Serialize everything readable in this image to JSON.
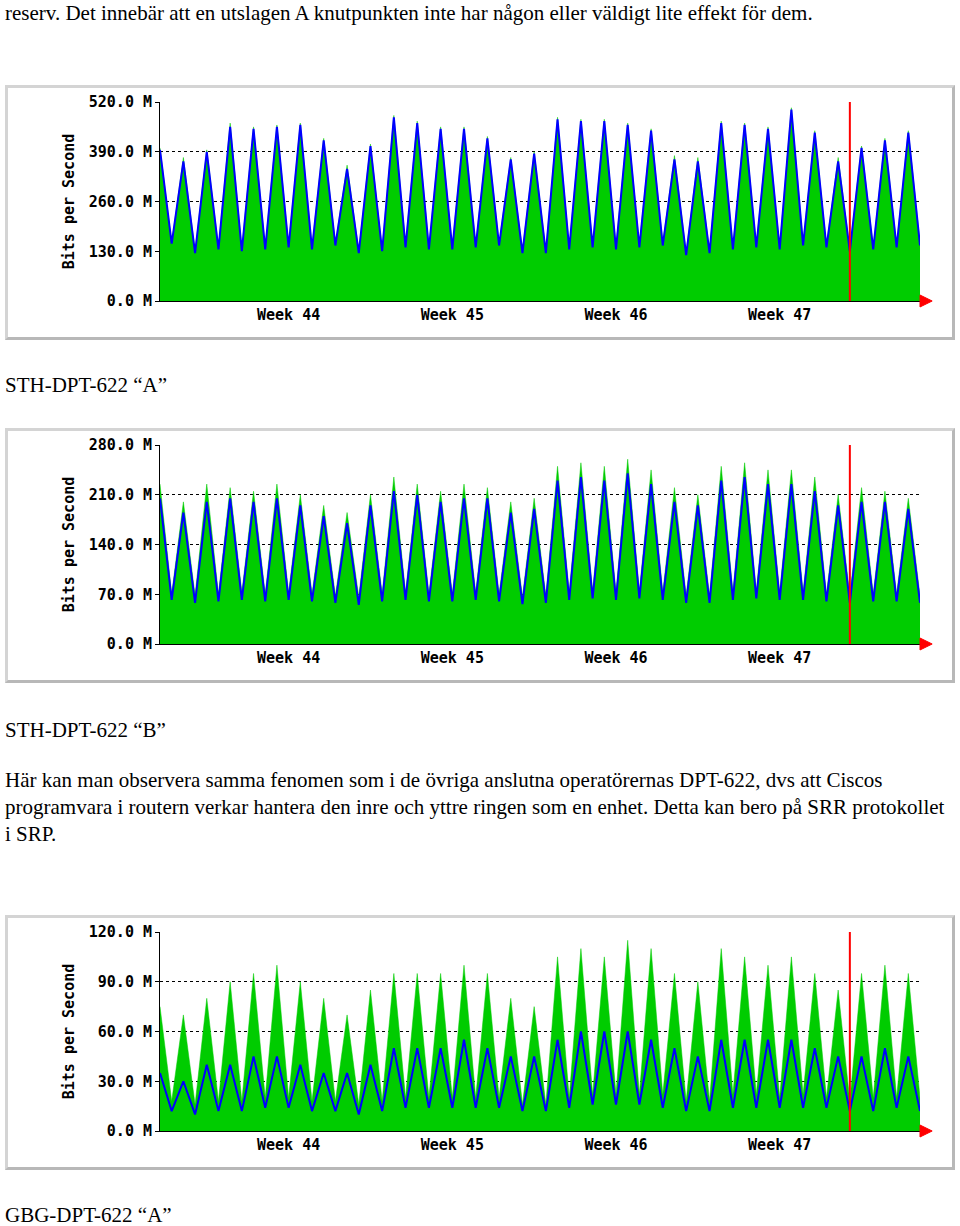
{
  "document": {
    "intro": "reserv. Det innebär att en utslagen A knutpunkten inte har någon eller väldigt lite effekt för dem.",
    "captions": [
      "STH-DPT-622 “A”",
      "STH-DPT-622 “B”",
      "GBG-DPT-622 “A”"
    ],
    "paragraph": "Här kan man observera samma fenomen som i de övriga anslutna operatörernas DPT-622, dvs att Ciscos programvara i routern verkar hantera den inre och yttre ringen som en enhet. Detta kan bero på SRR protokollet i SRP."
  },
  "chart_data": [
    {
      "type": "line",
      "y_label": "Bits per Second",
      "categories": [
        null,
        null,
        null,
        null,
        null,
        null,
        null,
        null,
        null,
        null,
        null,
        "Week 44",
        null,
        null,
        null,
        null,
        null,
        null,
        null,
        null,
        null,
        null,
        null,
        null,
        null,
        "Week 45",
        null,
        null,
        null,
        null,
        null,
        null,
        null,
        null,
        null,
        null,
        null,
        null,
        null,
        "Week 46",
        null,
        null,
        null,
        null,
        null,
        null,
        null,
        null,
        null,
        null,
        null,
        null,
        null,
        "Week 47",
        null,
        null,
        null,
        null,
        null,
        null,
        null,
        null,
        null,
        null,
        null,
        null
      ],
      "series": [
        {
          "type": "area",
          "color": "#00cc00",
          "values": [
            400,
            150,
            375,
            130,
            395,
            140,
            465,
            135,
            455,
            140,
            460,
            145,
            465,
            140,
            425,
            150,
            355,
            130,
            410,
            135,
            485,
            145,
            470,
            140,
            455,
            140,
            455,
            145,
            430,
            150,
            375,
            130,
            390,
            130,
            480,
            140,
            475,
            145,
            475,
            140,
            465,
            145,
            450,
            150,
            380,
            125,
            375,
            130,
            470,
            140,
            465,
            145,
            455,
            140,
            505,
            150,
            445,
            145,
            375,
            135,
            405,
            140,
            425,
            145,
            445,
            150
          ]
        },
        {
          "type": "line",
          "color": "#0000ff",
          "values": [
            395,
            150,
            365,
            125,
            390,
            135,
            455,
            130,
            450,
            135,
            455,
            140,
            460,
            135,
            420,
            145,
            345,
            125,
            405,
            130,
            480,
            140,
            465,
            135,
            450,
            135,
            450,
            140,
            425,
            145,
            370,
            125,
            385,
            125,
            475,
            135,
            470,
            140,
            470,
            135,
            460,
            140,
            445,
            145,
            370,
            120,
            365,
            125,
            465,
            135,
            460,
            140,
            450,
            135,
            500,
            145,
            440,
            140,
            365,
            130,
            400,
            135,
            420,
            140,
            440,
            145
          ]
        }
      ],
      "ylim": [
        0,
        520
      ],
      "yticks": [
        {
          "value": 0,
          "label": "0.0 M"
        },
        {
          "value": 130,
          "label": "130.0 M"
        },
        {
          "value": 260,
          "label": "260.0 M"
        },
        {
          "value": 390,
          "label": "390.0 M"
        },
        {
          "value": 520,
          "label": "520.0 M"
        }
      ],
      "grid": true,
      "vline": {
        "x": 59,
        "color": "#ff0000"
      }
    },
    {
      "type": "line",
      "y_label": "Bits per Second",
      "categories": [
        null,
        null,
        null,
        null,
        null,
        null,
        null,
        null,
        null,
        null,
        null,
        "Week 44",
        null,
        null,
        null,
        null,
        null,
        null,
        null,
        null,
        null,
        null,
        null,
        null,
        null,
        "Week 45",
        null,
        null,
        null,
        null,
        null,
        null,
        null,
        null,
        null,
        null,
        null,
        null,
        null,
        "Week 46",
        null,
        null,
        null,
        null,
        null,
        null,
        null,
        null,
        null,
        null,
        null,
        null,
        null,
        "Week 47",
        null,
        null,
        null,
        null,
        null,
        null,
        null,
        null,
        null,
        null,
        null,
        null
      ],
      "series": [
        {
          "type": "area",
          "color": "#00cc00",
          "values": [
            225,
            70,
            200,
            68,
            225,
            70,
            220,
            72,
            215,
            70,
            225,
            72,
            210,
            70,
            195,
            68,
            185,
            66,
            210,
            70,
            235,
            72,
            225,
            70,
            215,
            70,
            225,
            72,
            220,
            70,
            200,
            66,
            205,
            68,
            250,
            72,
            255,
            74,
            250,
            72,
            260,
            74,
            245,
            72,
            220,
            68,
            210,
            68,
            250,
            72,
            255,
            74,
            245,
            72,
            245,
            72,
            235,
            70,
            210,
            68,
            220,
            70,
            215,
            70,
            205,
            68
          ]
        },
        {
          "type": "line",
          "color": "#0000ff",
          "values": [
            205,
            62,
            185,
            58,
            200,
            60,
            205,
            62,
            200,
            60,
            205,
            62,
            195,
            60,
            180,
            58,
            170,
            55,
            195,
            60,
            215,
            62,
            210,
            60,
            200,
            60,
            205,
            62,
            205,
            60,
            185,
            56,
            190,
            58,
            230,
            62,
            235,
            64,
            230,
            62,
            240,
            64,
            225,
            62,
            200,
            58,
            195,
            58,
            230,
            62,
            235,
            64,
            225,
            62,
            225,
            62,
            215,
            60,
            195,
            58,
            200,
            60,
            200,
            60,
            190,
            58
          ]
        }
      ],
      "ylim": [
        0,
        280
      ],
      "yticks": [
        {
          "value": 0,
          "label": "0.0 M"
        },
        {
          "value": 70,
          "label": "70.0 M"
        },
        {
          "value": 140,
          "label": "140.0 M"
        },
        {
          "value": 210,
          "label": "210.0 M"
        },
        {
          "value": 280,
          "label": "280.0 M"
        }
      ],
      "grid": true,
      "vline": {
        "x": 59,
        "color": "#ff0000"
      }
    },
    {
      "type": "line",
      "y_label": "Bits per Second",
      "categories": [
        null,
        null,
        null,
        null,
        null,
        null,
        null,
        null,
        null,
        null,
        null,
        "Week 44",
        null,
        null,
        null,
        null,
        null,
        null,
        null,
        null,
        null,
        null,
        null,
        null,
        null,
        "Week 45",
        null,
        null,
        null,
        null,
        null,
        null,
        null,
        null,
        null,
        null,
        null,
        null,
        null,
        "Week 46",
        null,
        null,
        null,
        null,
        null,
        null,
        null,
        null,
        null,
        null,
        null,
        null,
        null,
        "Week 47",
        null,
        null,
        null,
        null,
        null,
        null,
        null,
        null,
        null,
        null,
        null,
        null
      ],
      "series": [
        {
          "type": "area",
          "color": "#00cc00",
          "values": [
            75,
            18,
            70,
            16,
            80,
            18,
            90,
            18,
            95,
            20,
            100,
            20,
            90,
            18,
            80,
            18,
            70,
            16,
            85,
            18,
            95,
            20,
            95,
            20,
            95,
            20,
            100,
            20,
            95,
            20,
            80,
            16,
            75,
            16,
            105,
            20,
            110,
            22,
            105,
            22,
            115,
            22,
            110,
            22,
            95,
            18,
            90,
            18,
            110,
            22,
            105,
            22,
            100,
            20,
            105,
            22,
            95,
            20,
            85,
            18,
            95,
            20,
            100,
            20,
            95,
            20
          ]
        },
        {
          "type": "line",
          "color": "#0000ff",
          "values": [
            35,
            12,
            30,
            10,
            40,
            12,
            40,
            12,
            45,
            14,
            45,
            14,
            40,
            12,
            35,
            12,
            35,
            10,
            40,
            12,
            50,
            14,
            50,
            14,
            50,
            14,
            55,
            14,
            50,
            14,
            45,
            12,
            45,
            12,
            55,
            14,
            60,
            16,
            60,
            16,
            60,
            16,
            55,
            14,
            50,
            12,
            45,
            12,
            55,
            14,
            55,
            14,
            55,
            14,
            55,
            14,
            50,
            14,
            45,
            12,
            45,
            12,
            50,
            14,
            45,
            12
          ]
        }
      ],
      "ylim": [
        0,
        120
      ],
      "yticks": [
        {
          "value": 0,
          "label": "0.0 M"
        },
        {
          "value": 30,
          "label": "30.0 M"
        },
        {
          "value": 60,
          "label": "60.0 M"
        },
        {
          "value": 90,
          "label": "90.0 M"
        },
        {
          "value": 120,
          "label": "120.0 M"
        }
      ],
      "grid": true,
      "vline": {
        "x": 59,
        "color": "#ff0000"
      }
    }
  ]
}
